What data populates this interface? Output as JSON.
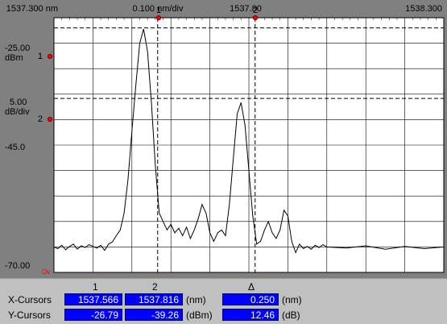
{
  "top_axis": {
    "start": "1537.300 nm",
    "scale": "0.100 nm/div",
    "center": "1537.80",
    "end": "1538.300"
  },
  "left_axis": {
    "ref_level": "-25.00",
    "ref_unit": "dBm",
    "scale_value": "5.00",
    "scale_unit": "dB/div",
    "mid_level": "-45.0",
    "bottom_level": "-70.00",
    "overflow_mark": "Ov"
  },
  "cursor_markers": {
    "c1": "1",
    "c2": "2"
  },
  "colors": {
    "trace": "#000000",
    "plot_bg": "#ffffff",
    "readout_box": "#0000ff",
    "marker": "#ff0000"
  },
  "readout": {
    "col1_header": "1",
    "col2_header": "2",
    "delta_header": "Δ",
    "x_label": "X-Cursors",
    "y_label": "Y-Cursors",
    "x1": "1537.566",
    "x2": "1537.816",
    "x_unit": "(nm)",
    "x_delta": "0.250",
    "x_delta_unit": "(nm)",
    "y1": "-26.79",
    "y2": "-39.26",
    "y_unit": "(dBm)",
    "y_delta": "12.46",
    "y_delta_unit": "(dB)"
  },
  "chart_data": {
    "type": "line",
    "xlim": [
      1537.3,
      1538.3
    ],
    "ylim": [
      -70,
      -25
    ],
    "x_cursors": [
      1537.566,
      1537.816
    ],
    "y_cursors": [
      -26.79,
      -39.26
    ],
    "series": [
      {
        "x": [
          1537.3,
          1537.31,
          1537.32,
          1537.33,
          1537.34,
          1537.35,
          1537.36,
          1537.37,
          1537.38,
          1537.39,
          1537.4,
          1537.41,
          1537.42,
          1537.43,
          1537.44,
          1537.45,
          1537.46,
          1537.47,
          1537.48,
          1537.49,
          1537.5,
          1537.51,
          1537.52,
          1537.53,
          1537.54,
          1537.55,
          1537.56,
          1537.57,
          1537.58,
          1537.59,
          1537.6,
          1537.61,
          1537.62,
          1537.63,
          1537.64,
          1537.65,
          1537.66,
          1537.67,
          1537.68,
          1537.69,
          1537.7,
          1537.71,
          1537.72,
          1537.73,
          1537.74,
          1537.75,
          1537.76,
          1537.77,
          1537.78,
          1537.79,
          1537.8,
          1537.81,
          1537.82,
          1537.83,
          1537.84,
          1537.85,
          1537.86,
          1537.87,
          1537.88,
          1537.89,
          1537.9,
          1537.91,
          1537.92,
          1537.93,
          1537.94,
          1537.95,
          1537.96,
          1537.97,
          1537.98,
          1537.99,
          1538.0,
          1538.05,
          1538.1,
          1538.15,
          1538.2,
          1538.25,
          1538.3
        ],
        "y": [
          -65.5,
          -65.8,
          -65.2,
          -66.0,
          -65.4,
          -65.0,
          -65.9,
          -65.3,
          -65.6,
          -65.1,
          -65.4,
          -65.7,
          -65.2,
          -66.1,
          -65.0,
          -64.6,
          -63.5,
          -62.5,
          -59.5,
          -53.5,
          -45.0,
          -37.0,
          -29.5,
          -27.0,
          -31.0,
          -40.0,
          -51.0,
          -59.5,
          -61.0,
          -62.5,
          -61.5,
          -63.0,
          -62.2,
          -63.5,
          -62.0,
          -64.0,
          -62.5,
          -60.5,
          -58.0,
          -59.5,
          -63.0,
          -64.5,
          -63.0,
          -62.5,
          -63.5,
          -58.0,
          -50.0,
          -42.0,
          -40.0,
          -44.0,
          -52.0,
          -60.0,
          -65.0,
          -64.5,
          -62.5,
          -61.0,
          -63.0,
          -64.0,
          -62.5,
          -59.0,
          -60.0,
          -64.5,
          -66.5,
          -65.0,
          -65.8,
          -65.4,
          -65.9,
          -65.2,
          -65.6,
          -65.1,
          -65.5,
          -65.7,
          -65.3,
          -65.9,
          -65.4,
          -65.8,
          -65.5
        ]
      }
    ]
  }
}
